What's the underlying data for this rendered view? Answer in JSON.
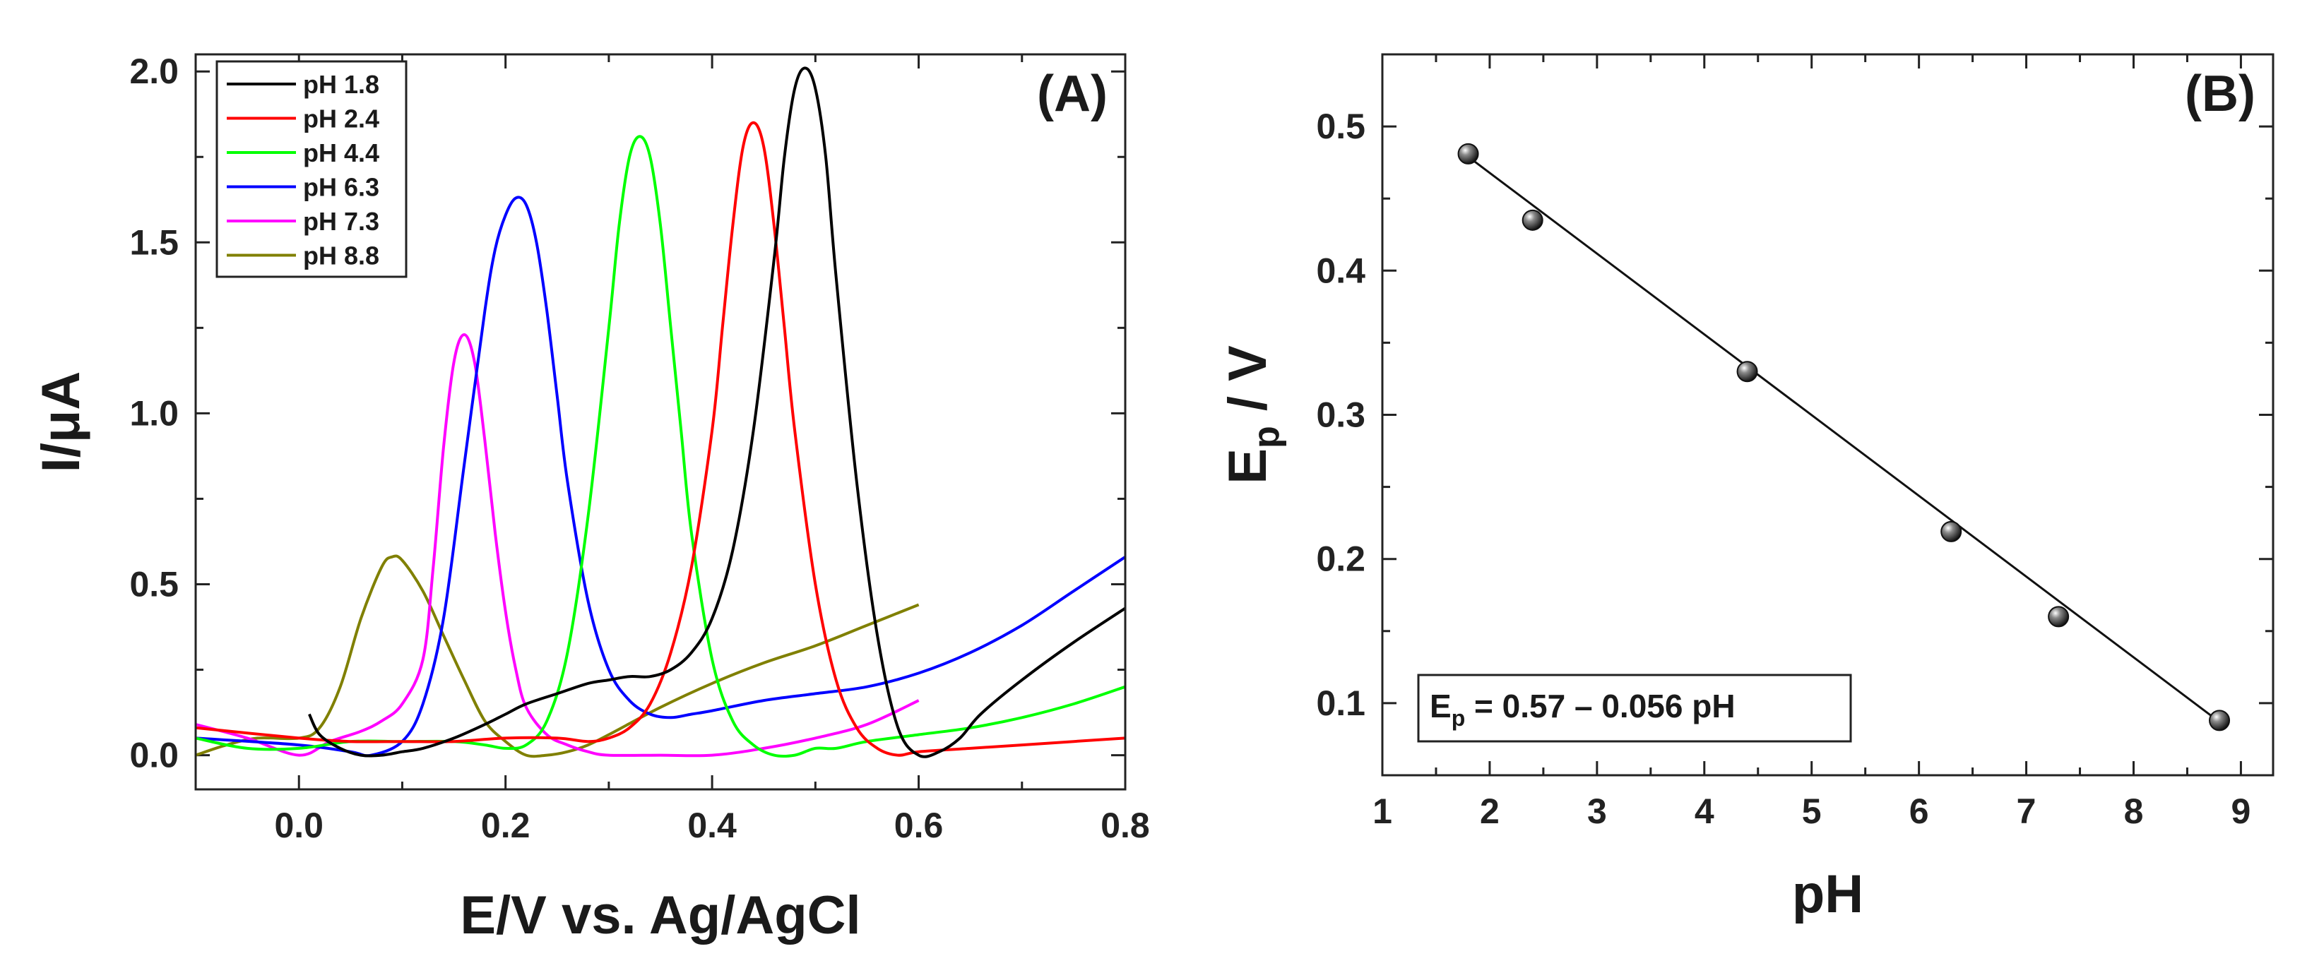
{
  "chart_data": [
    {
      "type": "line",
      "panel_label": "(A)",
      "xlabel": "E/V vs. Ag/AgCl",
      "ylabel": "I/μA",
      "xlim": [
        -0.1,
        0.8
      ],
      "ylim": [
        -0.1,
        2.05
      ],
      "xticks": [
        0.0,
        0.2,
        0.4,
        0.6,
        0.8
      ],
      "xtick_labels": [
        "0.0",
        "0.2",
        "0.4",
        "0.6",
        "0.8"
      ],
      "yticks": [
        0.0,
        0.5,
        1.0,
        1.5,
        2.0
      ],
      "ytick_labels": [
        "0.0",
        "0.5",
        "1.0",
        "1.5",
        "2.0"
      ],
      "legend_position": "top-left",
      "series": [
        {
          "name": "pH 1.8",
          "color": "#000000",
          "x": [
            0.01,
            0.02,
            0.04,
            0.06,
            0.08,
            0.1,
            0.12,
            0.15,
            0.18,
            0.2,
            0.22,
            0.25,
            0.28,
            0.3,
            0.32,
            0.34,
            0.36,
            0.38,
            0.4,
            0.42,
            0.44,
            0.46,
            0.47,
            0.48,
            0.49,
            0.5,
            0.51,
            0.52,
            0.54,
            0.56,
            0.58,
            0.6,
            0.62,
            0.64,
            0.66,
            0.7,
            0.75,
            0.8
          ],
          "y": [
            0.12,
            0.06,
            0.02,
            0.0,
            0.0,
            0.01,
            0.02,
            0.05,
            0.09,
            0.12,
            0.15,
            0.18,
            0.21,
            0.22,
            0.23,
            0.23,
            0.25,
            0.3,
            0.4,
            0.6,
            0.95,
            1.45,
            1.75,
            1.95,
            2.01,
            1.95,
            1.75,
            1.4,
            0.8,
            0.35,
            0.08,
            0.0,
            0.01,
            0.05,
            0.12,
            0.22,
            0.33,
            0.43
          ]
        },
        {
          "name": "pH 2.4",
          "color": "#ff0000",
          "x": [
            -0.1,
            0.0,
            0.05,
            0.1,
            0.15,
            0.2,
            0.25,
            0.28,
            0.3,
            0.32,
            0.34,
            0.36,
            0.38,
            0.4,
            0.41,
            0.42,
            0.43,
            0.44,
            0.45,
            0.46,
            0.47,
            0.48,
            0.5,
            0.52,
            0.54,
            0.56,
            0.58,
            0.6,
            0.65,
            0.7,
            0.75,
            0.8
          ],
          "y": [
            0.08,
            0.05,
            0.04,
            0.04,
            0.04,
            0.05,
            0.05,
            0.04,
            0.05,
            0.08,
            0.15,
            0.3,
            0.55,
            0.95,
            1.25,
            1.55,
            1.78,
            1.85,
            1.78,
            1.55,
            1.25,
            0.95,
            0.5,
            0.22,
            0.08,
            0.02,
            0.0,
            0.01,
            0.02,
            0.03,
            0.04,
            0.05
          ]
        },
        {
          "name": "pH 4.4",
          "color": "#00ff00",
          "x": [
            -0.1,
            -0.05,
            0.0,
            0.05,
            0.1,
            0.15,
            0.18,
            0.2,
            0.22,
            0.24,
            0.26,
            0.28,
            0.3,
            0.31,
            0.32,
            0.33,
            0.34,
            0.35,
            0.36,
            0.37,
            0.38,
            0.4,
            0.42,
            0.44,
            0.46,
            0.48,
            0.5,
            0.52,
            0.55,
            0.6,
            0.65,
            0.7,
            0.75,
            0.8
          ],
          "y": [
            0.05,
            0.02,
            0.02,
            0.04,
            0.04,
            0.04,
            0.03,
            0.02,
            0.03,
            0.1,
            0.3,
            0.7,
            1.25,
            1.55,
            1.75,
            1.81,
            1.75,
            1.55,
            1.25,
            0.95,
            0.65,
            0.28,
            0.1,
            0.03,
            0.0,
            0.0,
            0.02,
            0.02,
            0.04,
            0.06,
            0.08,
            0.11,
            0.15,
            0.2
          ]
        },
        {
          "name": "pH 6.3",
          "color": "#0000ff",
          "x": [
            -0.1,
            0.0,
            0.05,
            0.07,
            0.1,
            0.12,
            0.14,
            0.16,
            0.18,
            0.19,
            0.2,
            0.21,
            0.22,
            0.23,
            0.24,
            0.25,
            0.26,
            0.28,
            0.3,
            0.32,
            0.34,
            0.36,
            0.38,
            0.4,
            0.45,
            0.5,
            0.55,
            0.6,
            0.65,
            0.7,
            0.75,
            0.8
          ],
          "y": [
            0.05,
            0.03,
            0.01,
            0.0,
            0.04,
            0.15,
            0.4,
            0.85,
            1.3,
            1.48,
            1.58,
            1.63,
            1.61,
            1.5,
            1.3,
            1.05,
            0.8,
            0.45,
            0.25,
            0.16,
            0.12,
            0.11,
            0.12,
            0.13,
            0.16,
            0.18,
            0.2,
            0.24,
            0.3,
            0.38,
            0.48,
            0.58
          ]
        },
        {
          "name": "pH 7.3",
          "color": "#ff00ff",
          "x": [
            -0.1,
            -0.05,
            0.0,
            0.03,
            0.06,
            0.08,
            0.1,
            0.12,
            0.13,
            0.14,
            0.15,
            0.16,
            0.17,
            0.18,
            0.19,
            0.2,
            0.21,
            0.22,
            0.24,
            0.26,
            0.28,
            0.3,
            0.35,
            0.4,
            0.45,
            0.5,
            0.55,
            0.6
          ],
          "y": [
            0.09,
            0.05,
            0.0,
            0.04,
            0.07,
            0.1,
            0.15,
            0.28,
            0.55,
            0.9,
            1.15,
            1.23,
            1.15,
            0.92,
            0.65,
            0.42,
            0.25,
            0.14,
            0.06,
            0.03,
            0.01,
            0.0,
            0.0,
            0.0,
            0.02,
            0.05,
            0.09,
            0.16
          ]
        },
        {
          "name": "pH 8.8",
          "color": "#808000",
          "x": [
            -0.1,
            -0.07,
            -0.04,
            0.0,
            0.02,
            0.04,
            0.06,
            0.08,
            0.09,
            0.1,
            0.12,
            0.14,
            0.16,
            0.18,
            0.2,
            0.22,
            0.24,
            0.26,
            0.28,
            0.3,
            0.35,
            0.4,
            0.45,
            0.5,
            0.55,
            0.6
          ],
          "y": [
            0.0,
            0.03,
            0.05,
            0.05,
            0.08,
            0.2,
            0.4,
            0.55,
            0.58,
            0.57,
            0.48,
            0.35,
            0.22,
            0.1,
            0.04,
            0.0,
            0.0,
            0.01,
            0.03,
            0.06,
            0.14,
            0.21,
            0.27,
            0.32,
            0.38,
            0.44
          ]
        }
      ]
    },
    {
      "type": "scatter",
      "panel_label": "(B)",
      "xlabel": "pH",
      "ylabel_main": "E",
      "ylabel_sub": "p",
      "ylabel_rest": " / V",
      "xlim": [
        1,
        9.3
      ],
      "ylim": [
        0.05,
        0.55
      ],
      "xticks": [
        1,
        2,
        3,
        4,
        5,
        6,
        7,
        8,
        9
      ],
      "xtick_labels": [
        "1",
        "2",
        "3",
        "4",
        "5",
        "6",
        "7",
        "8",
        "9"
      ],
      "yticks": [
        0.1,
        0.2,
        0.3,
        0.4,
        0.5
      ],
      "ytick_labels": [
        "0.1",
        "0.2",
        "0.3",
        "0.4",
        "0.5"
      ],
      "points": [
        {
          "x": 1.8,
          "y": 0.481
        },
        {
          "x": 2.4,
          "y": 0.435
        },
        {
          "x": 4.4,
          "y": 0.33
        },
        {
          "x": 6.3,
          "y": 0.219
        },
        {
          "x": 7.3,
          "y": 0.16
        },
        {
          "x": 8.8,
          "y": 0.088
        }
      ],
      "fit_line": {
        "x": [
          1.8,
          8.8
        ],
        "y": [
          0.479,
          0.087
        ]
      },
      "equation": {
        "lhs_main": "E",
        "lhs_sub": "p",
        "rhs": " = 0.57 – 0.056 pH"
      }
    }
  ]
}
